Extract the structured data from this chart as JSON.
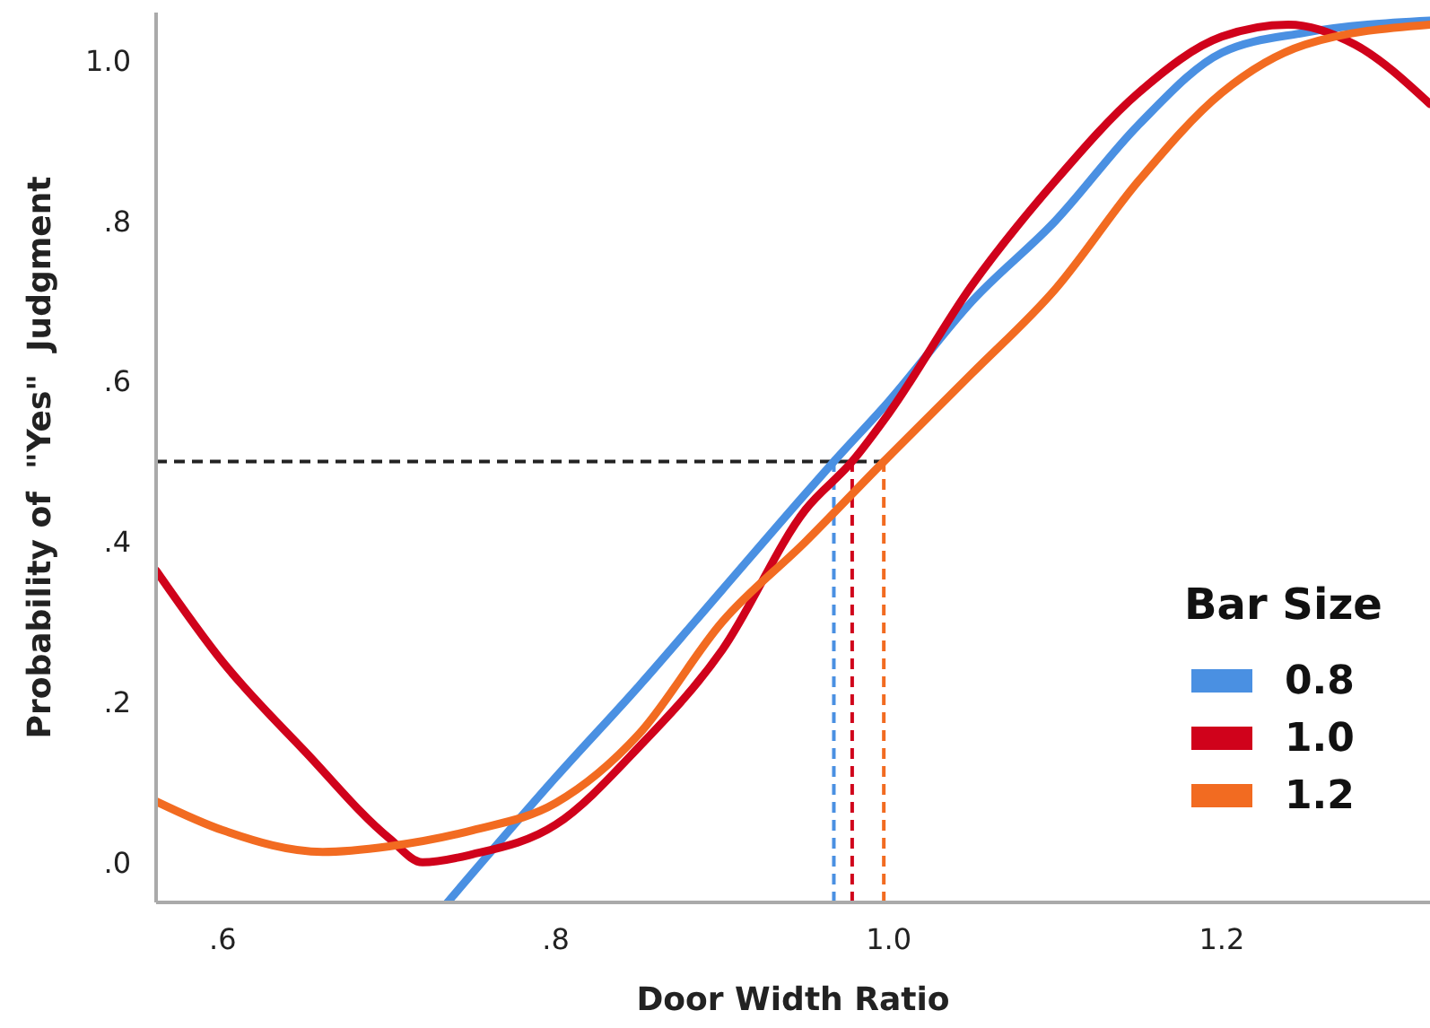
{
  "chart_data": {
    "type": "line",
    "xlabel": "Door Width Ratio",
    "ylabel": "Probability of  \"Yes\"  Judgment",
    "legend_title": "Bar Size",
    "legend": "bottom right",
    "grid": false,
    "marker": "none",
    "line_style": "solid",
    "xlim": [
      0.56,
      1.325
    ],
    "ylim": [
      -0.05,
      1.06
    ],
    "xticks": [
      {
        "value": 0.6,
        "label": ".6"
      },
      {
        "value": 0.8,
        "label": ".8"
      },
      {
        "value": 1.0,
        "label": "1.0"
      },
      {
        "value": 1.2,
        "label": "1.2"
      }
    ],
    "yticks": [
      {
        "value": 0,
        "label": ".0"
      },
      {
        "value": 0.2,
        "label": ".2"
      },
      {
        "value": 0.4,
        "label": ".4"
      },
      {
        "value": 0.6,
        "label": ".6"
      },
      {
        "value": 0.8,
        "label": ".8"
      },
      {
        "value": 1.0,
        "label": "1.0"
      }
    ],
    "series": [
      {
        "name": "0.8",
        "color": "#4a90e2",
        "x": [
          0.735,
          0.8,
          0.85,
          0.9,
          0.95,
          0.967,
          1.0,
          1.05,
          1.1,
          1.15,
          1.2,
          1.25,
          1.325
        ],
        "values": [
          -0.05,
          0.106,
          0.22,
          0.34,
          0.46,
          0.5,
          0.575,
          0.7,
          0.8,
          0.92,
          1.01,
          1.035,
          1.05
        ]
      },
      {
        "name": "1.0",
        "color": "#d0021b",
        "x": [
          0.56,
          0.6,
          0.65,
          0.7,
          0.72,
          0.75,
          0.8,
          0.85,
          0.9,
          0.95,
          0.978,
          1.0,
          1.05,
          1.1,
          1.15,
          1.2,
          1.24,
          1.28,
          1.325
        ],
        "values": [
          0.364,
          0.25,
          0.137,
          0.03,
          0.0,
          0.01,
          0.047,
          0.144,
          0.265,
          0.44,
          0.5,
          0.56,
          0.72,
          0.85,
          0.96,
          1.03,
          1.045,
          1.02,
          0.946
        ]
      },
      {
        "name": "1.2",
        "color": "#f26b21",
        "x": [
          0.56,
          0.6,
          0.66,
          0.7,
          0.75,
          0.8,
          0.85,
          0.9,
          0.95,
          0.997,
          1.05,
          1.1,
          1.15,
          1.2,
          1.25,
          1.325
        ],
        "values": [
          0.076,
          0.04,
          0.013,
          0.02,
          0.04,
          0.074,
          0.16,
          0.3,
          0.4,
          0.5,
          0.61,
          0.715,
          0.85,
          0.96,
          1.02,
          1.045
        ]
      }
    ],
    "ref_lines": [
      {
        "axis": "y",
        "value": 0.5,
        "color": "#222222",
        "line_style": "dashed"
      },
      {
        "axis": "x",
        "value": 0.967,
        "color": "#4a90e2",
        "line_style": "dashed"
      },
      {
        "axis": "x",
        "value": 0.978,
        "color": "#d0021b",
        "line_style": "dashed"
      },
      {
        "axis": "x",
        "value": 0.997,
        "color": "#f26b21",
        "line_style": "dashed"
      }
    ]
  }
}
